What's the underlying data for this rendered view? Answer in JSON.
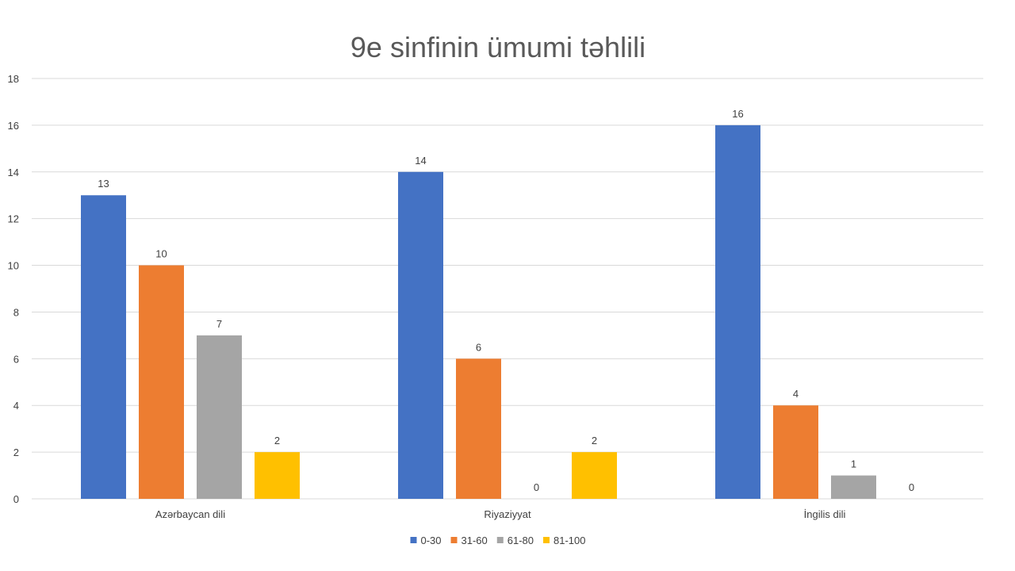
{
  "chart_data": {
    "type": "bar",
    "title": "9e sinfinin ümumi təhlili",
    "xlabel": "",
    "ylabel": "",
    "categories": [
      "Azərbaycan dili",
      "Riyaziyyat",
      "İngilis dili"
    ],
    "series": [
      {
        "name": "0-30",
        "color": "#4472C4",
        "values": [
          13,
          14,
          16
        ]
      },
      {
        "name": "31-60",
        "color": "#ED7D31",
        "values": [
          10,
          6,
          4
        ]
      },
      {
        "name": "61-80",
        "color": "#A5A5A5",
        "values": [
          7,
          0,
          1
        ]
      },
      {
        "name": "81-100",
        "color": "#FFC000",
        "values": [
          2,
          2,
          0
        ]
      }
    ],
    "ylim": [
      0,
      18
    ],
    "yticks": [
      0,
      2,
      4,
      6,
      8,
      10,
      12,
      14,
      16,
      18
    ],
    "grid": true,
    "legend_position": "bottom",
    "data_labels": true
  }
}
